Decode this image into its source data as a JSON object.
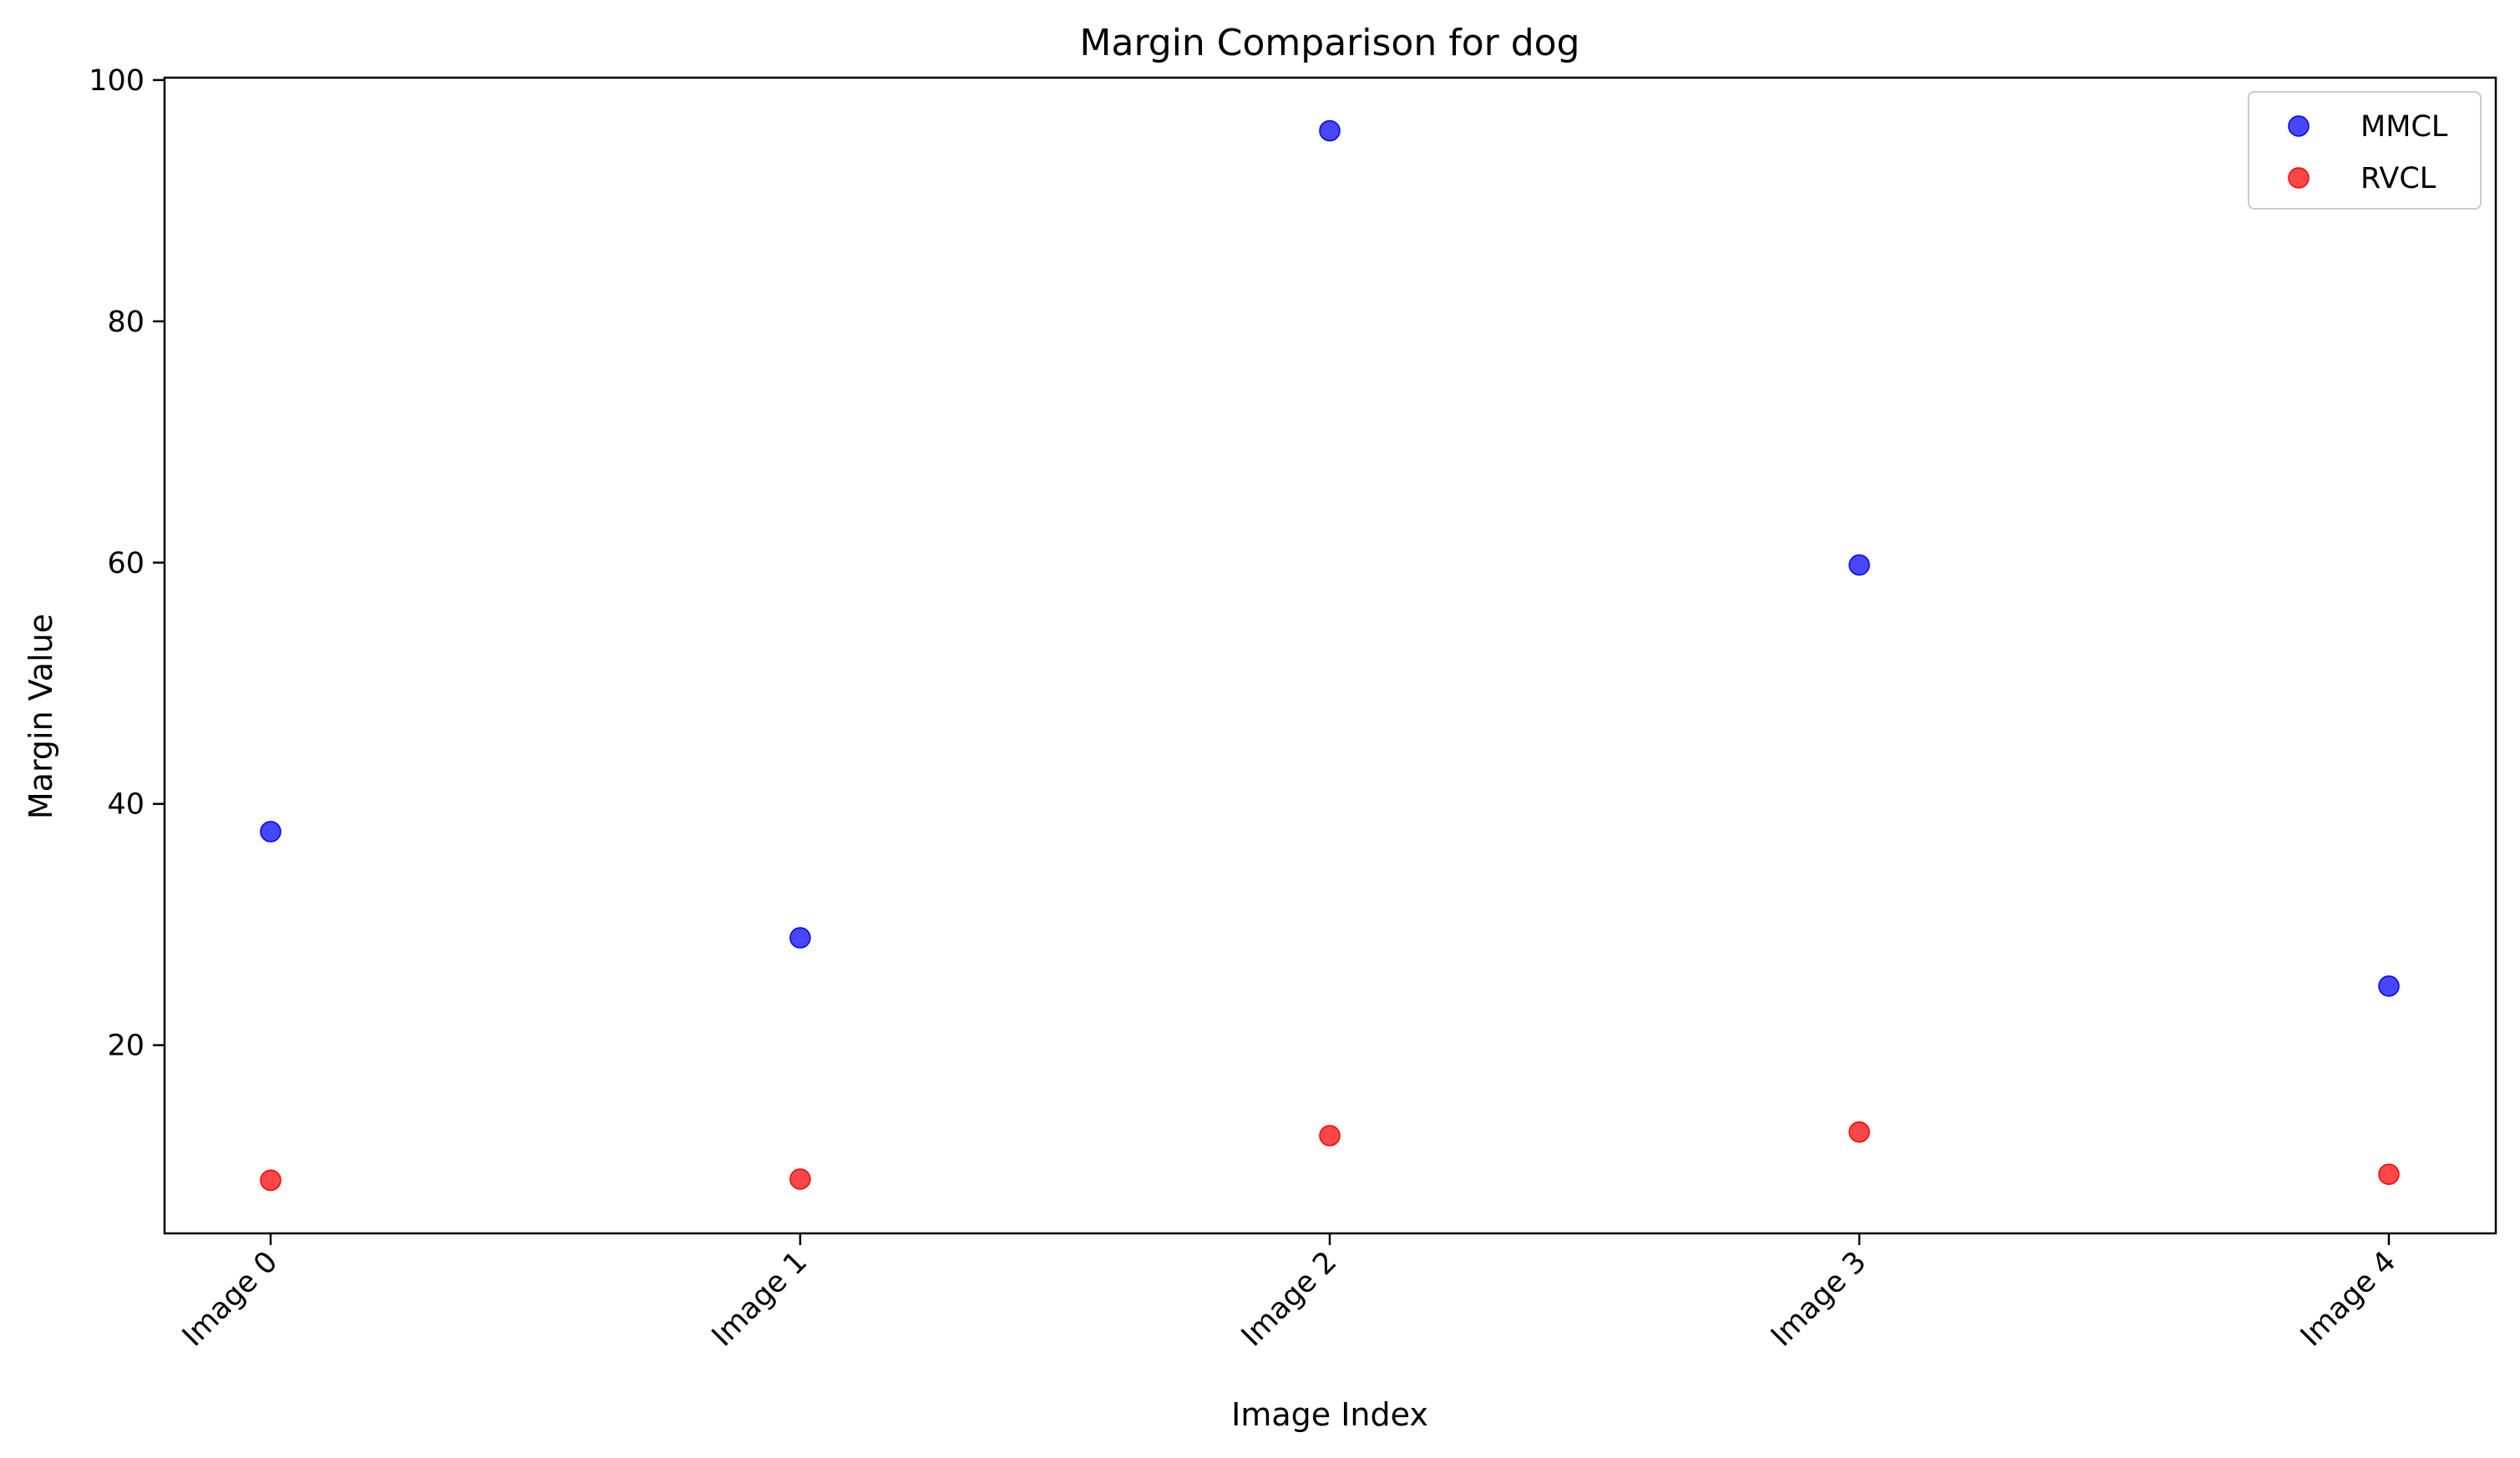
{
  "chart_data": {
    "type": "scatter",
    "title": "Margin Comparison for dog",
    "xlabel": "Image Index",
    "ylabel": "Margin Value",
    "categories": [
      "Image 0",
      "Image 1",
      "Image 2",
      "Image 3",
      "Image 4"
    ],
    "yticks": [
      20,
      40,
      60,
      80,
      100
    ],
    "ylim": [
      4.4,
      100.2
    ],
    "grid": false,
    "legend_position": "top-right",
    "series": [
      {
        "name": "MMCL",
        "color": "#0000ff",
        "values": [
          37.7,
          28.9,
          95.8,
          59.8,
          24.9
        ]
      },
      {
        "name": "RVCL",
        "color": "#ff0000",
        "values": [
          8.8,
          8.9,
          12.5,
          12.8,
          9.3
        ]
      }
    ]
  }
}
